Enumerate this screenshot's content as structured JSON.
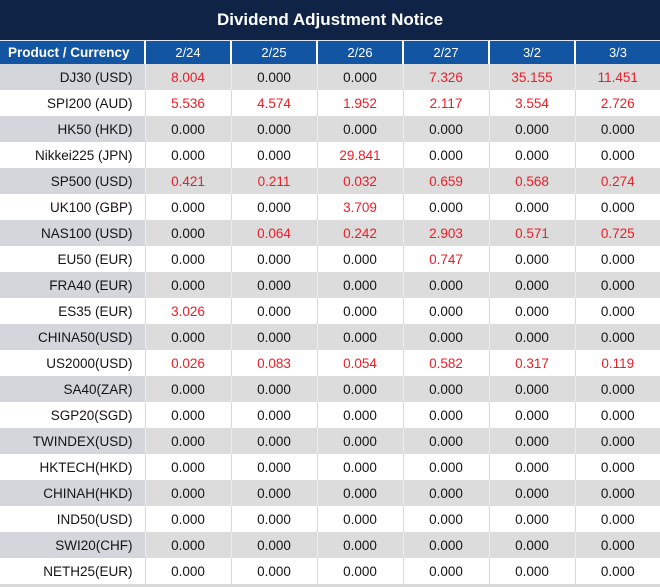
{
  "title": "Dividend Adjustment Notice",
  "colors": {
    "title_bg": "#0e2345",
    "header_bg": "#1155a3",
    "row_stripe_gray": "#dcdcdc",
    "label_cell_gray": "#d3d6da",
    "nonzero_value_red": "#ee1c25",
    "text_black": "#141414",
    "header_text": "#ffffff"
  },
  "table": {
    "product_header": "Product / Currency",
    "date_headers": [
      "2/24",
      "2/25",
      "2/26",
      "2/27",
      "3/2",
      "3/3"
    ],
    "rows": [
      {
        "product": "DJ30 (USD)",
        "values": [
          "8.004",
          "0.000",
          "0.000",
          "7.326",
          "35.155",
          "11.451"
        ]
      },
      {
        "product": "SPI200 (AUD)",
        "values": [
          "5.536",
          "4.574",
          "1.952",
          "2.117",
          "3.554",
          "2.726"
        ]
      },
      {
        "product": "HK50 (HKD)",
        "values": [
          "0.000",
          "0.000",
          "0.000",
          "0.000",
          "0.000",
          "0.000"
        ]
      },
      {
        "product": "Nikkei225 (JPN)",
        "values": [
          "0.000",
          "0.000",
          "29.841",
          "0.000",
          "0.000",
          "0.000"
        ]
      },
      {
        "product": "SP500 (USD)",
        "values": [
          "0.421",
          "0.211",
          "0.032",
          "0.659",
          "0.568",
          "0.274"
        ]
      },
      {
        "product": "UK100 (GBP)",
        "values": [
          "0.000",
          "0.000",
          "3.709",
          "0.000",
          "0.000",
          "0.000"
        ]
      },
      {
        "product": "NAS100 (USD)",
        "values": [
          "0.000",
          "0.064",
          "0.242",
          "2.903",
          "0.571",
          "0.725"
        ]
      },
      {
        "product": "EU50 (EUR)",
        "values": [
          "0.000",
          "0.000",
          "0.000",
          "0.747",
          "0.000",
          "0.000"
        ]
      },
      {
        "product": "FRA40 (EUR)",
        "values": [
          "0.000",
          "0.000",
          "0.000",
          "0.000",
          "0.000",
          "0.000"
        ]
      },
      {
        "product": "ES35 (EUR)",
        "values": [
          "3.026",
          "0.000",
          "0.000",
          "0.000",
          "0.000",
          "0.000"
        ]
      },
      {
        "product": "CHINA50(USD)",
        "values": [
          "0.000",
          "0.000",
          "0.000",
          "0.000",
          "0.000",
          "0.000"
        ]
      },
      {
        "product": "US2000(USD)",
        "values": [
          "0.026",
          "0.083",
          "0.054",
          "0.582",
          "0.317",
          "0.119"
        ]
      },
      {
        "product": "SA40(ZAR)",
        "values": [
          "0.000",
          "0.000",
          "0.000",
          "0.000",
          "0.000",
          "0.000"
        ]
      },
      {
        "product": "SGP20(SGD)",
        "values": [
          "0.000",
          "0.000",
          "0.000",
          "0.000",
          "0.000",
          "0.000"
        ]
      },
      {
        "product": "TWINDEX(USD)",
        "values": [
          "0.000",
          "0.000",
          "0.000",
          "0.000",
          "0.000",
          "0.000"
        ]
      },
      {
        "product": "HKTECH(HKD)",
        "values": [
          "0.000",
          "0.000",
          "0.000",
          "0.000",
          "0.000",
          "0.000"
        ]
      },
      {
        "product": "CHINAH(HKD)",
        "values": [
          "0.000",
          "0.000",
          "0.000",
          "0.000",
          "0.000",
          "0.000"
        ]
      },
      {
        "product": "IND50(USD)",
        "values": [
          "0.000",
          "0.000",
          "0.000",
          "0.000",
          "0.000",
          "0.000"
        ]
      },
      {
        "product": "SWI20(CHF)",
        "values": [
          "0.000",
          "0.000",
          "0.000",
          "0.000",
          "0.000",
          "0.000"
        ]
      },
      {
        "product": "NETH25(EUR)",
        "values": [
          "0.000",
          "0.000",
          "0.000",
          "0.000",
          "0.000",
          "0.000"
        ]
      }
    ]
  },
  "chart_data": {
    "type": "table",
    "title": "Dividend Adjustment Notice",
    "columns": [
      "Product / Currency",
      "2/24",
      "2/25",
      "2/26",
      "2/27",
      "3/2",
      "3/3"
    ],
    "rows": [
      [
        "DJ30 (USD)",
        8.004,
        0.0,
        0.0,
        7.326,
        35.155,
        11.451
      ],
      [
        "SPI200 (AUD)",
        5.536,
        4.574,
        1.952,
        2.117,
        3.554,
        2.726
      ],
      [
        "HK50 (HKD)",
        0.0,
        0.0,
        0.0,
        0.0,
        0.0,
        0.0
      ],
      [
        "Nikkei225 (JPN)",
        0.0,
        0.0,
        29.841,
        0.0,
        0.0,
        0.0
      ],
      [
        "SP500 (USD)",
        0.421,
        0.211,
        0.032,
        0.659,
        0.568,
        0.274
      ],
      [
        "UK100 (GBP)",
        0.0,
        0.0,
        3.709,
        0.0,
        0.0,
        0.0
      ],
      [
        "NAS100 (USD)",
        0.0,
        0.064,
        0.242,
        2.903,
        0.571,
        0.725
      ],
      [
        "EU50 (EUR)",
        0.0,
        0.0,
        0.0,
        0.747,
        0.0,
        0.0
      ],
      [
        "FRA40 (EUR)",
        0.0,
        0.0,
        0.0,
        0.0,
        0.0,
        0.0
      ],
      [
        "ES35 (EUR)",
        3.026,
        0.0,
        0.0,
        0.0,
        0.0,
        0.0
      ],
      [
        "CHINA50(USD)",
        0.0,
        0.0,
        0.0,
        0.0,
        0.0,
        0.0
      ],
      [
        "US2000(USD)",
        0.026,
        0.083,
        0.054,
        0.582,
        0.317,
        0.119
      ],
      [
        "SA40(ZAR)",
        0.0,
        0.0,
        0.0,
        0.0,
        0.0,
        0.0
      ],
      [
        "SGP20(SGD)",
        0.0,
        0.0,
        0.0,
        0.0,
        0.0,
        0.0
      ],
      [
        "TWINDEX(USD)",
        0.0,
        0.0,
        0.0,
        0.0,
        0.0,
        0.0
      ],
      [
        "HKTECH(HKD)",
        0.0,
        0.0,
        0.0,
        0.0,
        0.0,
        0.0
      ],
      [
        "CHINAH(HKD)",
        0.0,
        0.0,
        0.0,
        0.0,
        0.0,
        0.0
      ],
      [
        "IND50(USD)",
        0.0,
        0.0,
        0.0,
        0.0,
        0.0,
        0.0
      ],
      [
        "SWI20(CHF)",
        0.0,
        0.0,
        0.0,
        0.0,
        0.0,
        0.0
      ],
      [
        "NETH25(EUR)",
        0.0,
        0.0,
        0.0,
        0.0,
        0.0,
        0.0
      ]
    ],
    "notes": "Non-zero values rendered in red; zero values in black. Rows alternate gray/white stripes."
  }
}
